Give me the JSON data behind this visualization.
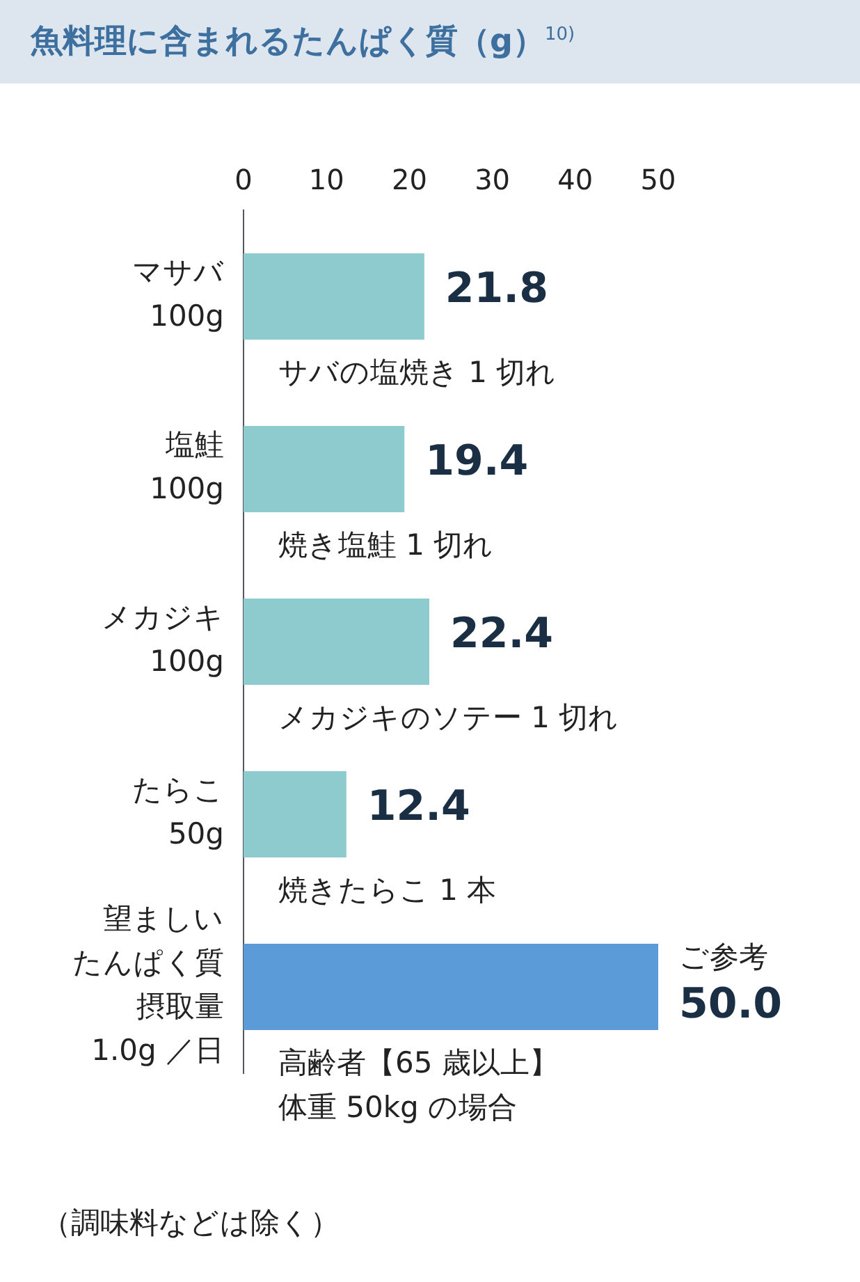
{
  "chart_data": {
    "type": "bar",
    "orientation": "horizontal",
    "title": "魚料理に含まれるたんぱく質（g）$^{10)}$",
    "categories": [
      "マサバ\n100g",
      "塩鮭\n100g",
      "メカジキ\n100g",
      "たらこ\n50g",
      "望ましいたんぱく質摂取量\n1.0g ／日"
    ],
    "values": [
      21.8,
      19.4,
      22.4,
      12.4,
      50.0
    ],
    "colors": [
      "#8ecbcf",
      "#8ecbcf",
      "#8ecbcf",
      "#8ecbcf",
      "#5b9bd8"
    ],
    "value_labels": [
      "21.8",
      "19.4",
      "22.4",
      "12.4",
      "50.0"
    ],
    "xlim": [
      0,
      50
    ],
    "xticks": [
      0,
      10,
      20,
      30,
      40,
      50
    ],
    "grid": false,
    "legend": false,
    "annotations": [
      "サバの塩焼き 1 切れ",
      "焼き塩鮭 1 切れ",
      "メカジキのソテー 1 切れ",
      "焼きたらこ 1 本",
      "高齢者【65 歳以上】体重 50kg の場合",
      {
        "text": "ご参考",
        "x": 50,
        "y": "望ましいたんぱく質摂取量\n1.0g ／日"
      },
      "（調味料などは除く）"
    ]
  }
}
